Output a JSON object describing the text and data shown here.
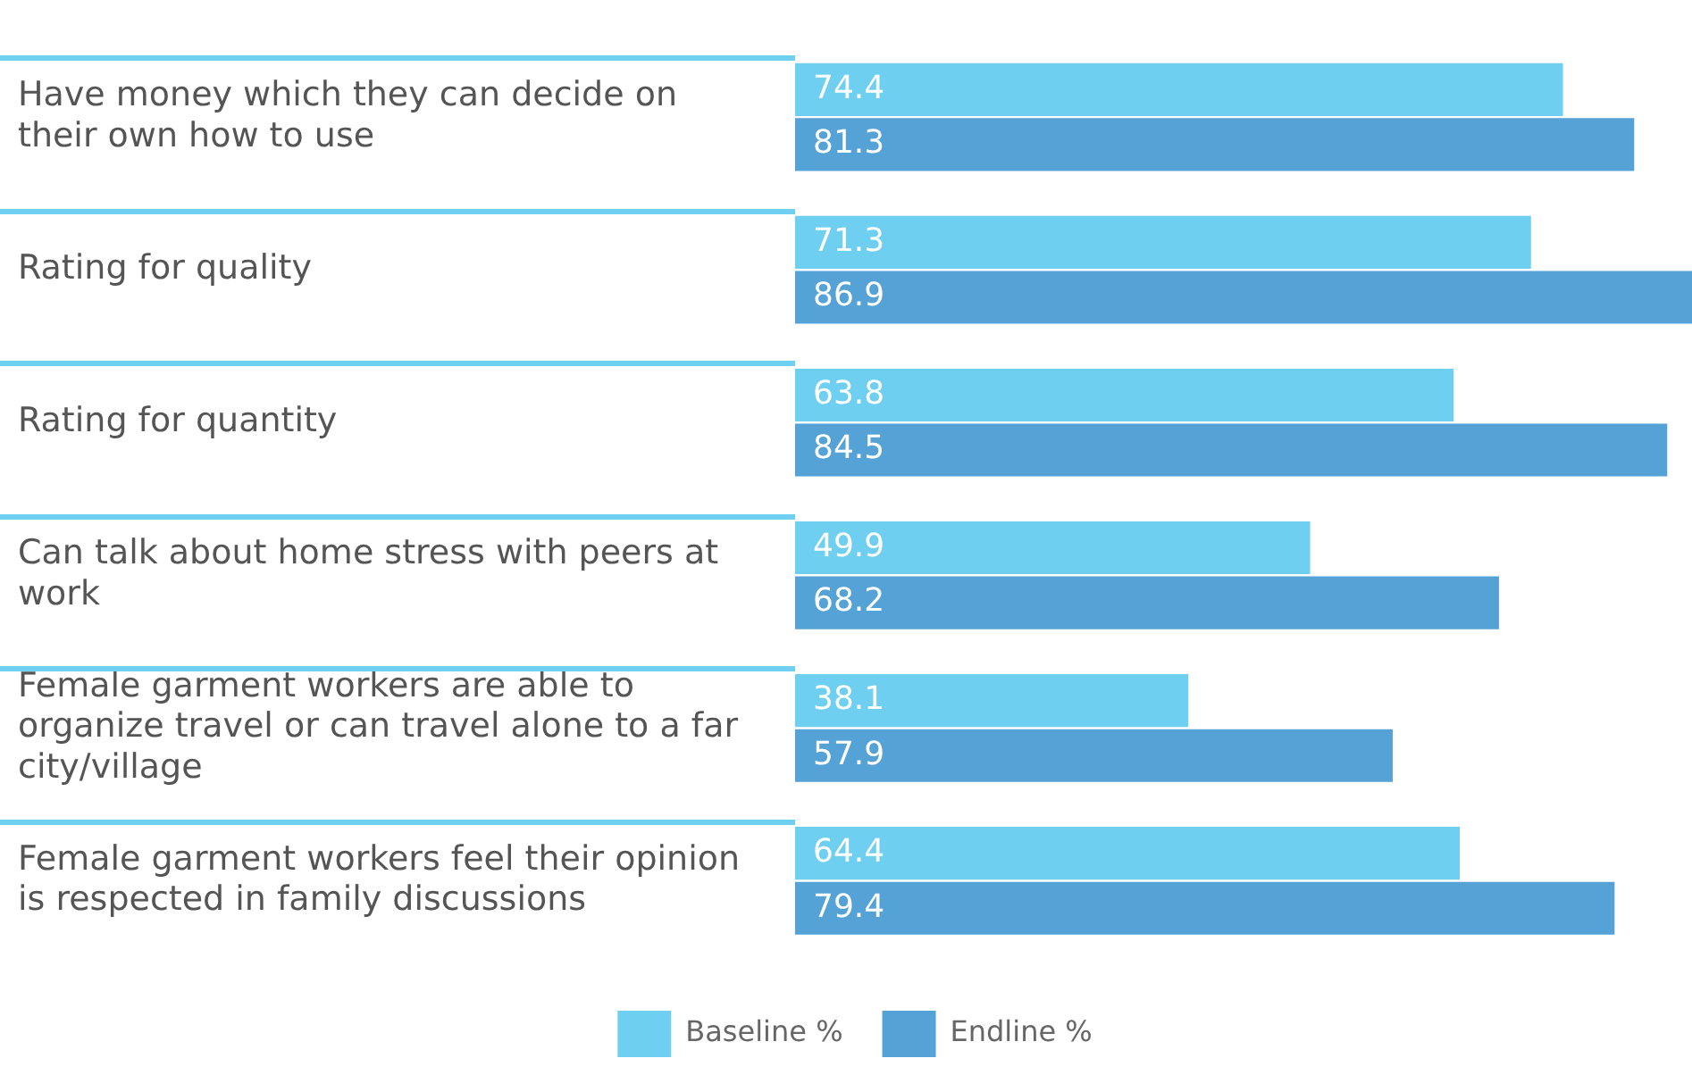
{
  "chart_data": {
    "type": "bar",
    "orientation": "horizontal",
    "categories": [
      "Have money which they can decide on their own how to use",
      "Rating for quality",
      "Rating for quantity",
      "Can talk about home stress with peers at work",
      "Female garment workers are able to organize travel or can travel alone to a far city/village",
      "Female garment workers feel their opinion is respected in family discussions"
    ],
    "series": [
      {
        "name": "Baseline %",
        "color": "#6fcff0",
        "values": [
          74.4,
          71.3,
          63.8,
          49.9,
          38.1,
          64.4
        ]
      },
      {
        "name": "Endline %",
        "color": "#55a2d6",
        "values": [
          81.3,
          86.9,
          84.5,
          68.2,
          57.9,
          79.4
        ]
      }
    ],
    "relative": false,
    "data_labels": true,
    "legend": "bottom",
    "grid": false
  }
}
